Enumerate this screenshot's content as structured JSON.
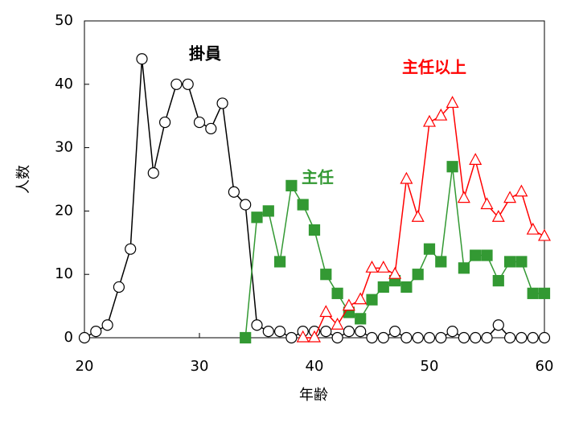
{
  "chart_data": {
    "type": "line",
    "xlabel": "年齢",
    "ylabel": "人数",
    "annotations": [
      "掛員",
      "主任以上",
      "主任"
    ],
    "x": [
      20,
      21,
      22,
      23,
      24,
      25,
      26,
      27,
      28,
      29,
      30,
      31,
      32,
      33,
      34,
      35,
      36,
      37,
      38,
      39,
      40,
      41,
      42,
      43,
      44,
      45,
      46,
      47,
      48,
      49,
      50,
      51,
      52,
      53,
      54,
      55,
      56,
      57,
      58,
      59,
      60
    ],
    "series": [
      {
        "name": "掛員",
        "color": "#000000",
        "marker": "circle",
        "values": [
          0,
          1,
          2,
          8,
          14,
          44,
          26,
          34,
          40,
          40,
          34,
          33,
          37,
          23,
          21,
          2,
          1,
          1,
          0,
          1,
          1,
          1,
          0,
          1,
          1,
          0,
          0,
          1,
          0,
          0,
          0,
          0,
          1,
          0,
          0,
          0,
          2,
          0,
          0,
          0,
          0
        ]
      },
      {
        "name": "主任",
        "color": "#339933",
        "marker": "square",
        "values": [
          null,
          null,
          null,
          null,
          null,
          null,
          null,
          null,
          null,
          null,
          null,
          null,
          null,
          null,
          0,
          19,
          20,
          12,
          24,
          21,
          17,
          10,
          7,
          4,
          3,
          6,
          8,
          9,
          8,
          10,
          14,
          12,
          27,
          11,
          13,
          13,
          9,
          12,
          12,
          7,
          7
        ]
      },
      {
        "name": "主任以上",
        "color": "#ff0000",
        "marker": "triangle",
        "values": [
          null,
          null,
          null,
          null,
          null,
          null,
          null,
          null,
          null,
          null,
          null,
          null,
          null,
          null,
          null,
          null,
          null,
          null,
          null,
          0,
          0,
          4,
          2,
          5,
          6,
          11,
          11,
          10,
          25,
          19,
          34,
          35,
          37,
          22,
          28,
          21,
          19,
          22,
          23,
          17,
          16
        ]
      }
    ],
    "xlim": [
      20,
      60
    ],
    "xticks": [
      20,
      30,
      40,
      50,
      60
    ],
    "ylim": [
      0,
      50
    ],
    "yticks": [
      0,
      10,
      20,
      30,
      40,
      50
    ]
  }
}
